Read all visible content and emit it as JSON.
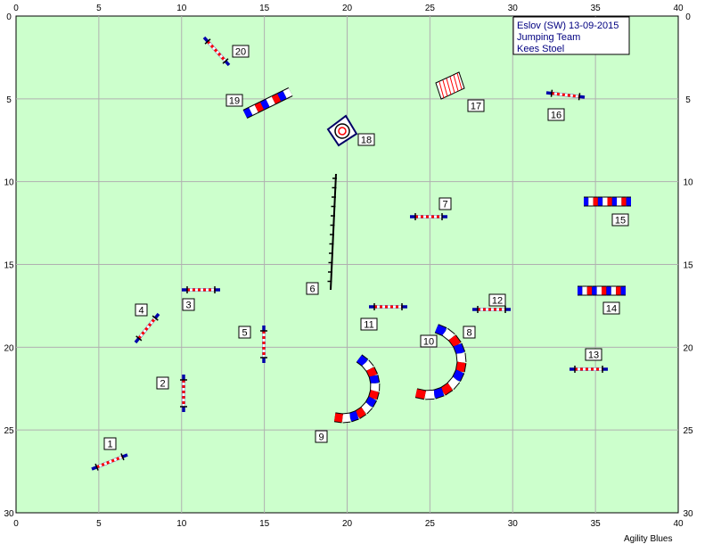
{
  "info": {
    "line1": "Eslov (SW) 13-09-2015",
    "line2": "Jumping Team",
    "line3": "Kees Stoel"
  },
  "footer": "Agility Blues",
  "axes": {
    "x_ticks": [
      "0",
      "5",
      "10",
      "15",
      "20",
      "25",
      "30",
      "35",
      "40"
    ],
    "y_ticks": [
      "0",
      "5",
      "10",
      "15",
      "20",
      "25",
      "30"
    ]
  },
  "colors": {
    "field": "#ccffcc",
    "grid": "#b0b0b0",
    "pole_red": "#ff0000",
    "wing_blue": "#0000aa",
    "tunnel_red": "#ff0000",
    "tunnel_blue": "#0000ff",
    "label_box": "#ffffff"
  },
  "obstacles": [
    {
      "n": "1",
      "type": "jump"
    },
    {
      "n": "2",
      "type": "jump"
    },
    {
      "n": "3",
      "type": "jump"
    },
    {
      "n": "4",
      "type": "jump"
    },
    {
      "n": "5",
      "type": "jump"
    },
    {
      "n": "6",
      "type": "weave"
    },
    {
      "n": "7",
      "type": "jump"
    },
    {
      "n": "8",
      "type": "tunnel"
    },
    {
      "n": "9",
      "type": "tunnel"
    },
    {
      "n": "10",
      "type": "tunnel"
    },
    {
      "n": "11",
      "type": "jump"
    },
    {
      "n": "12",
      "type": "jump"
    },
    {
      "n": "13",
      "type": "jump"
    },
    {
      "n": "14",
      "type": "tunnel"
    },
    {
      "n": "15",
      "type": "tunnel"
    },
    {
      "n": "16",
      "type": "jump"
    },
    {
      "n": "17",
      "type": "wall"
    },
    {
      "n": "18",
      "type": "tyre"
    },
    {
      "n": "19",
      "type": "tunnel"
    },
    {
      "n": "20",
      "type": "jump"
    }
  ]
}
